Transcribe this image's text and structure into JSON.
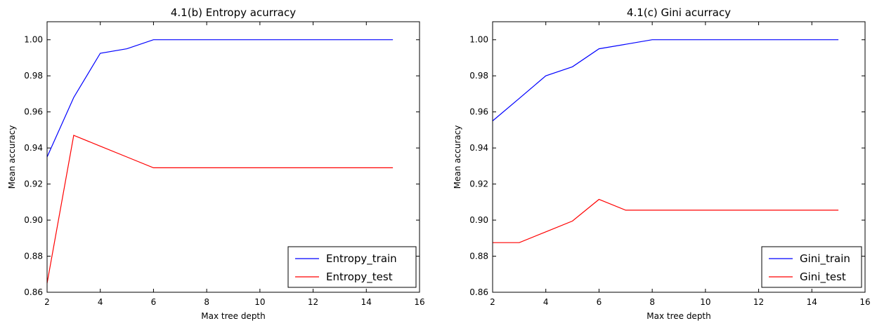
{
  "chart_data": [
    {
      "type": "line",
      "title": "4.1(b) Entropy acurracy",
      "xlabel": "Max tree depth",
      "ylabel": "Mean accuracy",
      "xlim": [
        2,
        16
      ],
      "ylim": [
        0.86,
        1.01
      ],
      "xticks": [
        "2",
        "4",
        "6",
        "8",
        "10",
        "12",
        "14",
        "16"
      ],
      "yticks": [
        "0.86",
        "0.88",
        "0.90",
        "0.92",
        "0.94",
        "0.96",
        "0.98",
        "1.00"
      ],
      "legend_position": "bottom-right",
      "series": [
        {
          "name": "Entropy_train",
          "color": "#0000ff",
          "x": [
            2,
            3,
            4,
            5,
            6,
            7,
            8,
            9,
            10,
            11,
            12,
            13,
            14,
            15
          ],
          "y": [
            0.935,
            0.968,
            0.9925,
            0.995,
            1.0,
            1.0,
            1.0,
            1.0,
            1.0,
            1.0,
            1.0,
            1.0,
            1.0,
            1.0
          ]
        },
        {
          "name": "Entropy_test",
          "color": "#ff0000",
          "x": [
            2,
            3,
            4,
            5,
            6,
            7,
            8,
            9,
            10,
            11,
            12,
            13,
            14,
            15
          ],
          "y": [
            0.865,
            0.947,
            0.941,
            0.935,
            0.929,
            0.929,
            0.929,
            0.929,
            0.929,
            0.929,
            0.929,
            0.929,
            0.929,
            0.929
          ]
        }
      ]
    },
    {
      "type": "line",
      "title": "4.1(c) Gini acurracy",
      "xlabel": "Max tree depth",
      "ylabel": "Mean accuracy",
      "xlim": [
        2,
        16
      ],
      "ylim": [
        0.86,
        1.01
      ],
      "xticks": [
        "2",
        "4",
        "6",
        "8",
        "10",
        "12",
        "14",
        "16"
      ],
      "yticks": [
        "0.86",
        "0.88",
        "0.90",
        "0.92",
        "0.94",
        "0.96",
        "0.98",
        "1.00"
      ],
      "legend_position": "bottom-right",
      "series": [
        {
          "name": "Gini_train",
          "color": "#0000ff",
          "x": [
            2,
            3,
            4,
            5,
            6,
            7,
            8,
            9,
            10,
            11,
            12,
            13,
            14,
            15
          ],
          "y": [
            0.955,
            0.9675,
            0.98,
            0.985,
            0.995,
            0.9975,
            1.0,
            1.0,
            1.0,
            1.0,
            1.0,
            1.0,
            1.0,
            1.0
          ]
        },
        {
          "name": "Gini_test",
          "color": "#ff0000",
          "x": [
            2,
            3,
            4,
            5,
            6,
            7,
            8,
            9,
            10,
            11,
            12,
            13,
            14,
            15
          ],
          "y": [
            0.8875,
            0.8875,
            0.8935,
            0.8995,
            0.9115,
            0.9055,
            0.9055,
            0.9055,
            0.9055,
            0.9055,
            0.9055,
            0.9055,
            0.9055,
            0.9055
          ]
        }
      ]
    }
  ]
}
